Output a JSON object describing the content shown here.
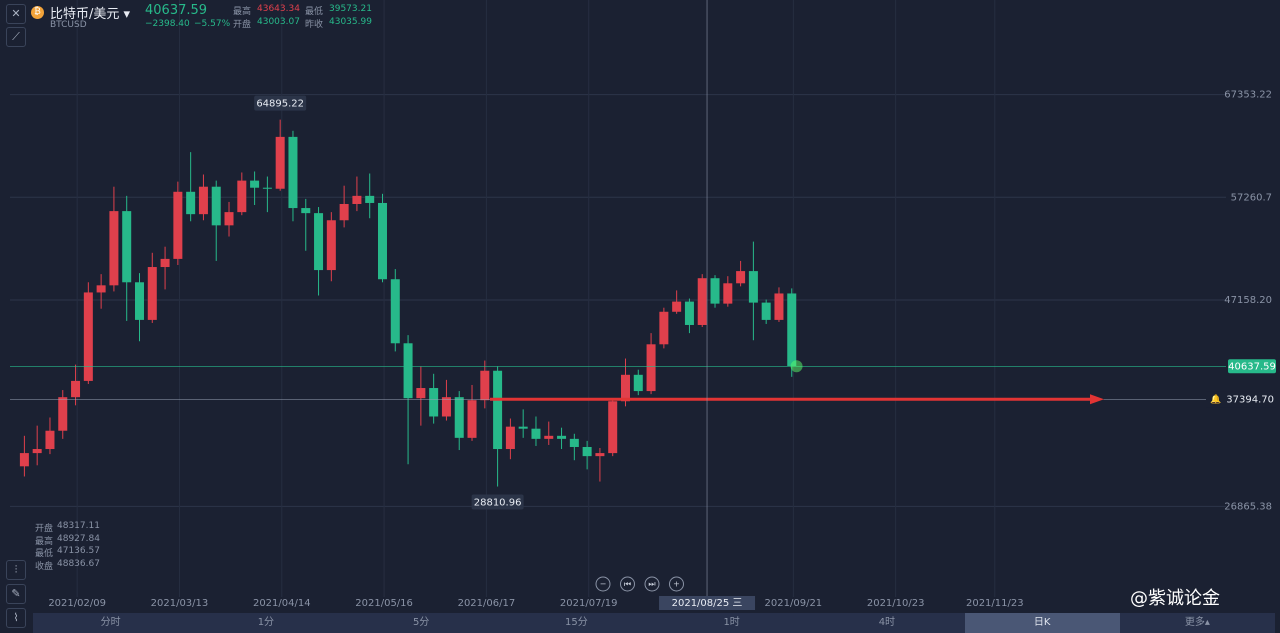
{
  "header": {
    "name": "比特币/美元",
    "symbol": "BTCUSD",
    "price": "40637.59",
    "change": "−2398.40",
    "change_pct": "−5.57%",
    "stats": [
      {
        "label": "最高",
        "value": "43643.34"
      },
      {
        "label": "开盘",
        "value": "43003.07"
      },
      {
        "label": "最低",
        "value": "39573.21"
      },
      {
        "label": "昨收",
        "value": "43035.99"
      }
    ]
  },
  "ohlc_box": [
    {
      "label": "开盘",
      "value": "48317.11"
    },
    {
      "label": "最高",
      "value": "48927.84"
    },
    {
      "label": "最低",
      "value": "47136.57"
    },
    {
      "label": "收盘",
      "value": "48836.67"
    }
  ],
  "timeframes": [
    "分时",
    "1分",
    "5分",
    "15分",
    "1时",
    "4时",
    "日K",
    "更多▴"
  ],
  "timeframe_selected": 6,
  "watermark": "@紫诚论金",
  "chart_data": {
    "type": "candlestick",
    "up_color": "#e0404c",
    "down_color": "#27b98a",
    "grid": true,
    "xlim": [
      "2021/01/19",
      "2022/02/03"
    ],
    "xticks": [
      "2021/02/09",
      "2021/03/13",
      "2021/04/14",
      "2021/05/16",
      "2021/06/17",
      "2021/07/19",
      "2021/09/21",
      "2021/10/23",
      "2021/11/23"
    ],
    "ylim": [
      18143,
      76663
    ],
    "yticks": [
      67353.22,
      57260.7,
      {
        "value": 47158.2,
        "label": "47158.20"
      },
      26865.38
    ],
    "x": [
      "2021/01/22",
      "2021/01/26",
      "2021/01/30",
      "2021/02/03",
      "2021/02/07",
      "2021/02/11",
      "2021/02/15",
      "2021/02/19",
      "2021/02/23",
      "2021/02/27",
      "2021/03/03",
      "2021/03/07",
      "2021/03/11",
      "2021/03/15",
      "2021/03/19",
      "2021/03/23",
      "2021/03/27",
      "2021/03/31",
      "2021/04/04",
      "2021/04/08",
      "2021/04/12",
      "2021/04/16",
      "2021/04/20",
      "2021/04/24",
      "2021/04/28",
      "2021/05/02",
      "2021/05/06",
      "2021/05/10",
      "2021/05/14",
      "2021/05/18",
      "2021/05/22",
      "2021/05/26",
      "2021/05/30",
      "2021/06/03",
      "2021/06/07",
      "2021/06/11",
      "2021/06/15",
      "2021/06/19",
      "2021/06/23",
      "2021/06/27",
      "2021/07/01",
      "2021/07/05",
      "2021/07/09",
      "2021/07/13",
      "2021/07/17",
      "2021/07/21",
      "2021/07/25",
      "2021/07/29",
      "2021/08/02",
      "2021/08/06",
      "2021/08/10",
      "2021/08/14",
      "2021/08/18",
      "2021/08/22",
      "2021/08/26",
      "2021/08/30",
      "2021/09/03",
      "2021/09/07",
      "2021/09/11",
      "2021/09/15",
      "2021/09/19"
    ],
    "ohlc": [
      [
        30800,
        33800,
        29800,
        32100
      ],
      [
        32100,
        34800,
        30900,
        32500
      ],
      [
        32500,
        35600,
        32000,
        34300
      ],
      [
        34300,
        38300,
        33500,
        37600
      ],
      [
        37600,
        40800,
        36800,
        39200
      ],
      [
        39200,
        48900,
        38900,
        47900
      ],
      [
        47900,
        49700,
        46300,
        48600
      ],
      [
        48600,
        58300,
        48000,
        55900
      ],
      [
        55900,
        57400,
        45100,
        48900
      ],
      [
        48900,
        49800,
        43100,
        45200
      ],
      [
        45200,
        51800,
        44900,
        50400
      ],
      [
        50400,
        52400,
        48200,
        51200
      ],
      [
        51200,
        58800,
        50600,
        57800
      ],
      [
        57800,
        61700,
        54900,
        55600
      ],
      [
        55600,
        59500,
        55000,
        58300
      ],
      [
        58300,
        58900,
        51000,
        54500
      ],
      [
        54500,
        56800,
        53400,
        55800
      ],
      [
        55800,
        59700,
        55500,
        58900
      ],
      [
        58900,
        59800,
        56500,
        58200
      ],
      [
        58200,
        59300,
        55800,
        58100
      ],
      [
        58100,
        64895.22,
        57900,
        63200
      ],
      [
        63200,
        63800,
        54900,
        56200
      ],
      [
        56200,
        57100,
        52000,
        55700
      ],
      [
        55700,
        56300,
        47600,
        50100
      ],
      [
        50100,
        55800,
        49000,
        55000
      ],
      [
        55000,
        58400,
        54300,
        56600
      ],
      [
        56600,
        59300,
        55900,
        57400
      ],
      [
        57400,
        59600,
        55200,
        56700
      ],
      [
        56700,
        57600,
        48900,
        49200
      ],
      [
        49200,
        50200,
        42100,
        42900
      ],
      [
        42900,
        43700,
        31000,
        37500
      ],
      [
        37500,
        40600,
        34800,
        38500
      ],
      [
        38500,
        39900,
        35000,
        35700
      ],
      [
        35700,
        39300,
        35300,
        37600
      ],
      [
        37600,
        38200,
        32400,
        33600
      ],
      [
        33600,
        38800,
        33300,
        37300
      ],
      [
        37300,
        41200,
        36500,
        40200
      ],
      [
        40200,
        40600,
        28810.96,
        32500
      ],
      [
        32500,
        35500,
        31500,
        34700
      ],
      [
        34700,
        36400,
        33600,
        34500
      ],
      [
        34500,
        35700,
        32800,
        33500
      ],
      [
        33500,
        35200,
        32900,
        33800
      ],
      [
        33800,
        34600,
        32500,
        33500
      ],
      [
        33500,
        34000,
        31400,
        32700
      ],
      [
        32700,
        33300,
        30500,
        31800
      ],
      [
        31800,
        32600,
        29300,
        32100
      ],
      [
        32100,
        37400,
        31800,
        37200
      ],
      [
        37200,
        41400,
        36700,
        39800
      ],
      [
        39800,
        40300,
        37800,
        38200
      ],
      [
        38200,
        43900,
        37900,
        42800
      ],
      [
        42800,
        46400,
        42400,
        46000
      ],
      [
        46000,
        48100,
        45800,
        47000
      ],
      [
        47000,
        47300,
        43900,
        44700
      ],
      [
        44700,
        49700,
        44500,
        49300
      ],
      [
        49300,
        49600,
        46400,
        46800
      ],
      [
        46800,
        49500,
        46500,
        48800
      ],
      [
        48800,
        51000,
        48500,
        50000
      ],
      [
        50000,
        52900,
        43200,
        46900
      ],
      [
        46900,
        47200,
        44800,
        45200
      ],
      [
        45200,
        48400,
        45000,
        47800
      ],
      [
        47800,
        48300,
        39600,
        40637.59
      ]
    ],
    "last_price": 40637.59,
    "hline": {
      "value": 37394.7,
      "label": "37394.70"
    },
    "crosshair": "2021/08/25 三"
  }
}
